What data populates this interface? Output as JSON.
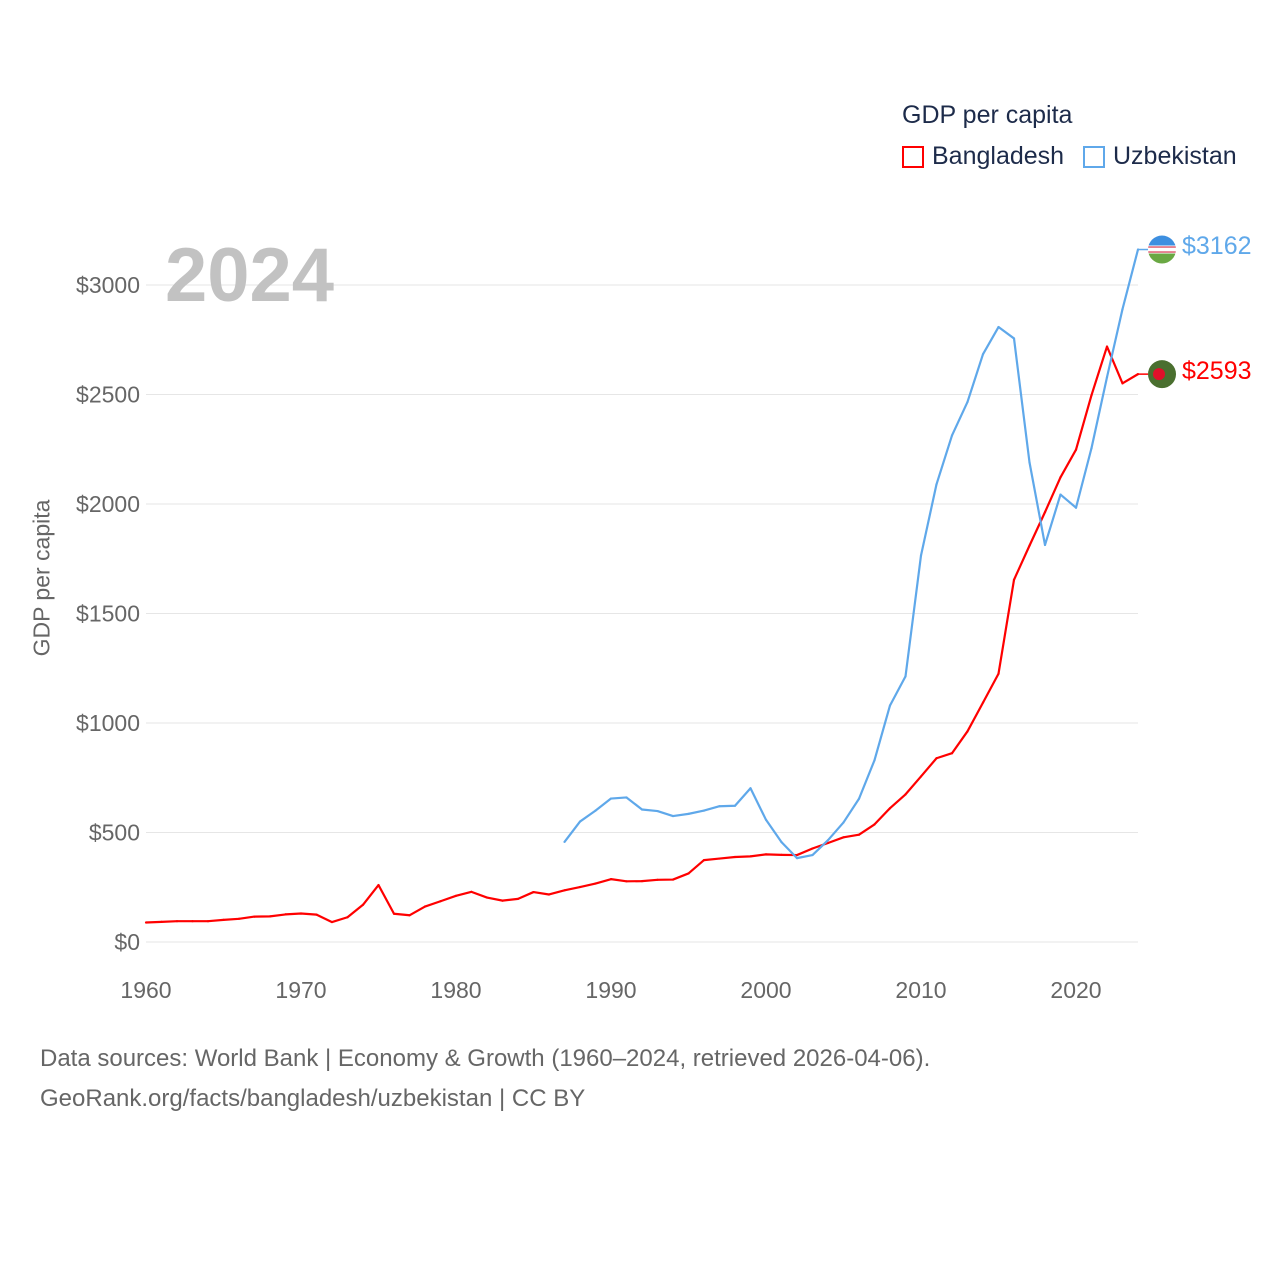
{
  "chart_data": {
    "type": "line",
    "title": "GDP per capita",
    "ylabel": "GDP per capita",
    "xlabel": "",
    "xlim": [
      1960,
      2024
    ],
    "ylim": [
      0,
      3000
    ],
    "x_ticks": [
      "1960",
      "1970",
      "1980",
      "1990",
      "2000",
      "2010",
      "2020"
    ],
    "y_ticks": [
      "$0",
      "$500",
      "$1000",
      "$1500",
      "$2000",
      "$2500",
      "$3000"
    ],
    "grid": true,
    "legend_position": "top-right",
    "current_year_label": "2024",
    "series": [
      {
        "name": "Bangladesh",
        "color": "#ff0000",
        "start_year": 1960,
        "end_label": "$2593",
        "values": [
          89,
          92,
          95,
          95,
          95,
          101,
          106,
          116,
          117,
          126,
          130,
          125,
          91,
          113,
          170,
          260,
          129,
          122,
          162,
          186,
          211,
          229,
          203,
          189,
          197,
          228,
          217,
          236,
          251,
          267,
          287,
          277,
          278,
          284,
          285,
          313,
          374,
          381,
          388,
          391,
          400,
          398,
          397,
          427,
          452,
          478,
          490,
          537,
          611,
          674,
          756,
          839,
          862,
          962,
          1093,
          1225,
          1654,
          1810,
          1963,
          2122,
          2248,
          2497,
          2719,
          2551,
          2593
        ]
      },
      {
        "name": "Uzbekistan",
        "color": "#5fa8ea",
        "start_year": 1987,
        "end_label": "$3162",
        "values": [
          457,
          550,
          600,
          655,
          660,
          605,
          598,
          575,
          585,
          600,
          620,
          622,
          702,
          558,
          456,
          383,
          397,
          465,
          546,
          654,
          830,
          1080,
          1213,
          1765,
          2090,
          2313,
          2466,
          2684,
          2808,
          2756,
          2190,
          1813,
          2043,
          1983,
          2255,
          2579,
          2890,
          3162
        ]
      }
    ]
  },
  "footer": {
    "line1": "Data sources: World Bank | Economy & Growth (1960–2024, retrieved 2026-04-06).",
    "line2": "GeoRank.org/facts/bangladesh/uzbekistan | CC BY"
  }
}
